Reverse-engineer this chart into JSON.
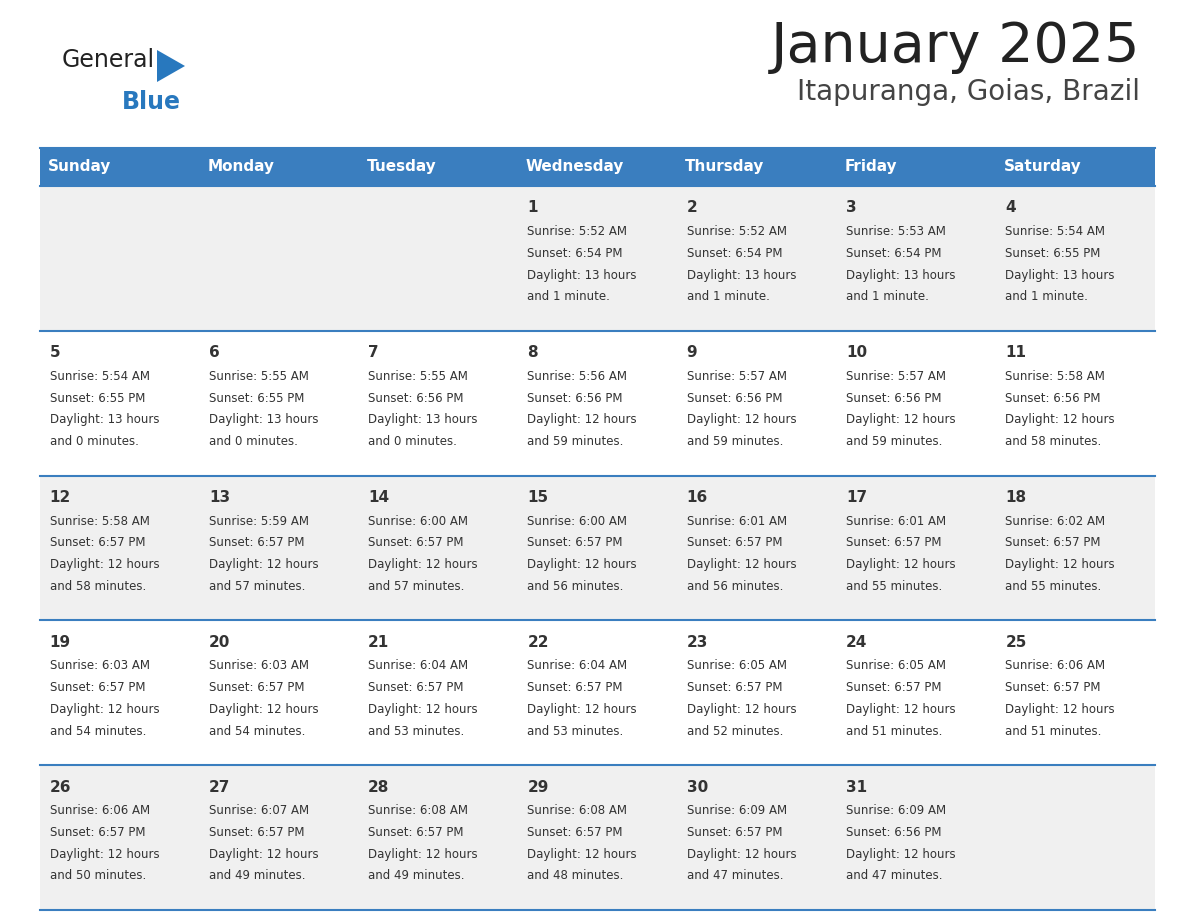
{
  "title": "January 2025",
  "subtitle": "Itapuranga, Goias, Brazil",
  "days_of_week": [
    "Sunday",
    "Monday",
    "Tuesday",
    "Wednesday",
    "Thursday",
    "Friday",
    "Saturday"
  ],
  "header_bg": "#3a7ebf",
  "header_text": "#ffffff",
  "row_bg_odd": "#f0f0f0",
  "row_bg_even": "#ffffff",
  "cell_text": "#333333",
  "border_color": "#3a7ebf",
  "title_color": "#222222",
  "subtitle_color": "#444444",
  "logo_general_color": "#222222",
  "logo_blue_color": "#2878be",
  "calendar_data": [
    {
      "day": 1,
      "col": 3,
      "row": 0,
      "sunrise": "5:52 AM",
      "sunset": "6:54 PM",
      "daylight_hrs": 13,
      "daylight_min": 1,
      "daylight_min_word": "minute"
    },
    {
      "day": 2,
      "col": 4,
      "row": 0,
      "sunrise": "5:52 AM",
      "sunset": "6:54 PM",
      "daylight_hrs": 13,
      "daylight_min": 1,
      "daylight_min_word": "minute"
    },
    {
      "day": 3,
      "col": 5,
      "row": 0,
      "sunrise": "5:53 AM",
      "sunset": "6:54 PM",
      "daylight_hrs": 13,
      "daylight_min": 1,
      "daylight_min_word": "minute"
    },
    {
      "day": 4,
      "col": 6,
      "row": 0,
      "sunrise": "5:54 AM",
      "sunset": "6:55 PM",
      "daylight_hrs": 13,
      "daylight_min": 1,
      "daylight_min_word": "minute"
    },
    {
      "day": 5,
      "col": 0,
      "row": 1,
      "sunrise": "5:54 AM",
      "sunset": "6:55 PM",
      "daylight_hrs": 13,
      "daylight_min": 0,
      "daylight_min_word": "minutes"
    },
    {
      "day": 6,
      "col": 1,
      "row": 1,
      "sunrise": "5:55 AM",
      "sunset": "6:55 PM",
      "daylight_hrs": 13,
      "daylight_min": 0,
      "daylight_min_word": "minutes"
    },
    {
      "day": 7,
      "col": 2,
      "row": 1,
      "sunrise": "5:55 AM",
      "sunset": "6:56 PM",
      "daylight_hrs": 13,
      "daylight_min": 0,
      "daylight_min_word": "minutes"
    },
    {
      "day": 8,
      "col": 3,
      "row": 1,
      "sunrise": "5:56 AM",
      "sunset": "6:56 PM",
      "daylight_hrs": 12,
      "daylight_min": 59,
      "daylight_min_word": "minutes"
    },
    {
      "day": 9,
      "col": 4,
      "row": 1,
      "sunrise": "5:57 AM",
      "sunset": "6:56 PM",
      "daylight_hrs": 12,
      "daylight_min": 59,
      "daylight_min_word": "minutes"
    },
    {
      "day": 10,
      "col": 5,
      "row": 1,
      "sunrise": "5:57 AM",
      "sunset": "6:56 PM",
      "daylight_hrs": 12,
      "daylight_min": 59,
      "daylight_min_word": "minutes"
    },
    {
      "day": 11,
      "col": 6,
      "row": 1,
      "sunrise": "5:58 AM",
      "sunset": "6:56 PM",
      "daylight_hrs": 12,
      "daylight_min": 58,
      "daylight_min_word": "minutes"
    },
    {
      "day": 12,
      "col": 0,
      "row": 2,
      "sunrise": "5:58 AM",
      "sunset": "6:57 PM",
      "daylight_hrs": 12,
      "daylight_min": 58,
      "daylight_min_word": "minutes"
    },
    {
      "day": 13,
      "col": 1,
      "row": 2,
      "sunrise": "5:59 AM",
      "sunset": "6:57 PM",
      "daylight_hrs": 12,
      "daylight_min": 57,
      "daylight_min_word": "minutes"
    },
    {
      "day": 14,
      "col": 2,
      "row": 2,
      "sunrise": "6:00 AM",
      "sunset": "6:57 PM",
      "daylight_hrs": 12,
      "daylight_min": 57,
      "daylight_min_word": "minutes"
    },
    {
      "day": 15,
      "col": 3,
      "row": 2,
      "sunrise": "6:00 AM",
      "sunset": "6:57 PM",
      "daylight_hrs": 12,
      "daylight_min": 56,
      "daylight_min_word": "minutes"
    },
    {
      "day": 16,
      "col": 4,
      "row": 2,
      "sunrise": "6:01 AM",
      "sunset": "6:57 PM",
      "daylight_hrs": 12,
      "daylight_min": 56,
      "daylight_min_word": "minutes"
    },
    {
      "day": 17,
      "col": 5,
      "row": 2,
      "sunrise": "6:01 AM",
      "sunset": "6:57 PM",
      "daylight_hrs": 12,
      "daylight_min": 55,
      "daylight_min_word": "minutes"
    },
    {
      "day": 18,
      "col": 6,
      "row": 2,
      "sunrise": "6:02 AM",
      "sunset": "6:57 PM",
      "daylight_hrs": 12,
      "daylight_min": 55,
      "daylight_min_word": "minutes"
    },
    {
      "day": 19,
      "col": 0,
      "row": 3,
      "sunrise": "6:03 AM",
      "sunset": "6:57 PM",
      "daylight_hrs": 12,
      "daylight_min": 54,
      "daylight_min_word": "minutes"
    },
    {
      "day": 20,
      "col": 1,
      "row": 3,
      "sunrise": "6:03 AM",
      "sunset": "6:57 PM",
      "daylight_hrs": 12,
      "daylight_min": 54,
      "daylight_min_word": "minutes"
    },
    {
      "day": 21,
      "col": 2,
      "row": 3,
      "sunrise": "6:04 AM",
      "sunset": "6:57 PM",
      "daylight_hrs": 12,
      "daylight_min": 53,
      "daylight_min_word": "minutes"
    },
    {
      "day": 22,
      "col": 3,
      "row": 3,
      "sunrise": "6:04 AM",
      "sunset": "6:57 PM",
      "daylight_hrs": 12,
      "daylight_min": 53,
      "daylight_min_word": "minutes"
    },
    {
      "day": 23,
      "col": 4,
      "row": 3,
      "sunrise": "6:05 AM",
      "sunset": "6:57 PM",
      "daylight_hrs": 12,
      "daylight_min": 52,
      "daylight_min_word": "minutes"
    },
    {
      "day": 24,
      "col": 5,
      "row": 3,
      "sunrise": "6:05 AM",
      "sunset": "6:57 PM",
      "daylight_hrs": 12,
      "daylight_min": 51,
      "daylight_min_word": "minutes"
    },
    {
      "day": 25,
      "col": 6,
      "row": 3,
      "sunrise": "6:06 AM",
      "sunset": "6:57 PM",
      "daylight_hrs": 12,
      "daylight_min": 51,
      "daylight_min_word": "minutes"
    },
    {
      "day": 26,
      "col": 0,
      "row": 4,
      "sunrise": "6:06 AM",
      "sunset": "6:57 PM",
      "daylight_hrs": 12,
      "daylight_min": 50,
      "daylight_min_word": "minutes"
    },
    {
      "day": 27,
      "col": 1,
      "row": 4,
      "sunrise": "6:07 AM",
      "sunset": "6:57 PM",
      "daylight_hrs": 12,
      "daylight_min": 49,
      "daylight_min_word": "minutes"
    },
    {
      "day": 28,
      "col": 2,
      "row": 4,
      "sunrise": "6:08 AM",
      "sunset": "6:57 PM",
      "daylight_hrs": 12,
      "daylight_min": 49,
      "daylight_min_word": "minutes"
    },
    {
      "day": 29,
      "col": 3,
      "row": 4,
      "sunrise": "6:08 AM",
      "sunset": "6:57 PM",
      "daylight_hrs": 12,
      "daylight_min": 48,
      "daylight_min_word": "minutes"
    },
    {
      "day": 30,
      "col": 4,
      "row": 4,
      "sunrise": "6:09 AM",
      "sunset": "6:57 PM",
      "daylight_hrs": 12,
      "daylight_min": 47,
      "daylight_min_word": "minutes"
    },
    {
      "day": 31,
      "col": 5,
      "row": 4,
      "sunrise": "6:09 AM",
      "sunset": "6:56 PM",
      "daylight_hrs": 12,
      "daylight_min": 47,
      "daylight_min_word": "minutes"
    }
  ]
}
